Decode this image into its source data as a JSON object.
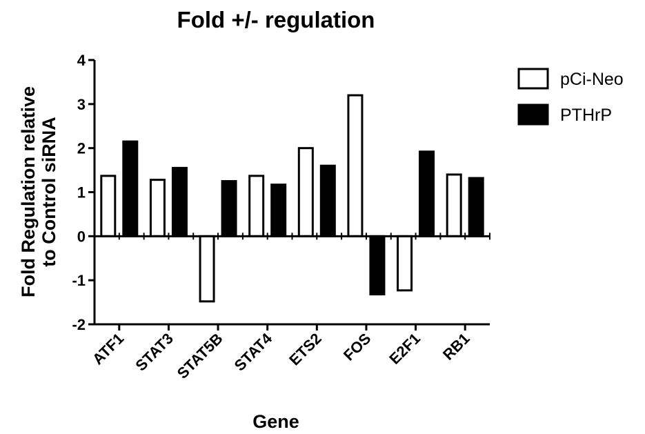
{
  "chart_data": {
    "type": "bar",
    "title": "Fold +/- regulation",
    "xlabel": "Gene",
    "ylabel_lines": [
      "Fold  Regulation relative",
      "to  Control siRNA"
    ],
    "categories": [
      "ATF1",
      "STAT3",
      "STAT5B",
      "STAT4",
      "ETS2",
      "FOS",
      "E2F1",
      "RB1"
    ],
    "series": [
      {
        "name": "pCi-Neo",
        "fill": "#ffffff",
        "values": [
          1.37,
          1.28,
          -1.48,
          1.37,
          2.0,
          3.2,
          -1.23,
          1.4
        ]
      },
      {
        "name": "PTHrP",
        "fill": "#000000",
        "values": [
          2.15,
          1.55,
          1.25,
          1.17,
          1.6,
          -1.32,
          1.92,
          1.32
        ]
      }
    ],
    "ylim": [
      -2,
      4
    ],
    "yticks": [
      -2,
      -1,
      0,
      1,
      2,
      3,
      4
    ],
    "grid": false,
    "legend_position": "top-right",
    "colors": {
      "stroke": "#000000"
    }
  }
}
